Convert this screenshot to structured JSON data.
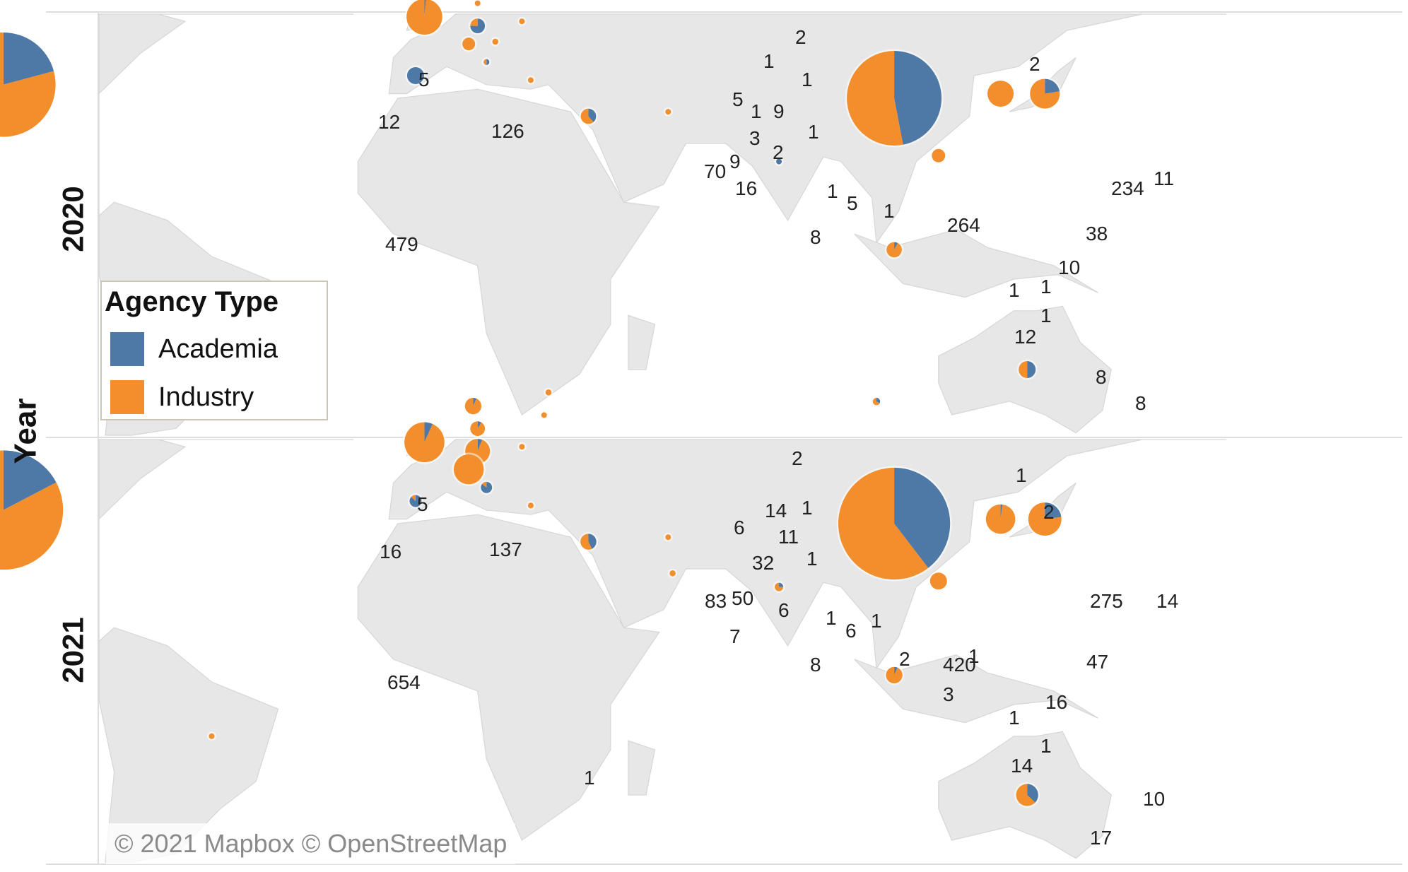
{
  "axis": {
    "row_title": "Year"
  },
  "legend": {
    "title": "Agency Type",
    "items": [
      {
        "label": "Academia",
        "color": "#4e79a7"
      },
      {
        "label": "Industry",
        "color": "#f28e2b"
      }
    ]
  },
  "attribution": "© 2021 Mapbox © OpenStreetMap",
  "panels": [
    {
      "year": "2020",
      "markers": [
        {
          "location": "United States",
          "lon": -97,
          "lat": 38,
          "academia": 126,
          "industry": 479,
          "labels": [
            "126",
            "479"
          ]
        },
        {
          "location": "Canada",
          "lon": -106,
          "lat": 57,
          "academia": 5,
          "industry": 12,
          "labels": [
            "5",
            "12"
          ]
        },
        {
          "location": "United Kingdom",
          "lon": -2,
          "lat": 53,
          "academia": 1,
          "industry": 70,
          "labels": [
            "70"
          ]
        },
        {
          "location": "Norway",
          "lon": 9,
          "lat": 61,
          "academia": 0,
          "industry": 5,
          "labels": [
            "5"
          ]
        },
        {
          "location": "Sweden",
          "lon": 15,
          "lat": 62,
          "academia": 0,
          "industry": 1,
          "labels": [
            "1"
          ]
        },
        {
          "location": "Finland",
          "lon": 26,
          "lat": 64,
          "academia": 0,
          "industry": 2,
          "labels": [
            "2"
          ]
        },
        {
          "location": "Estonia",
          "lon": 25,
          "lat": 59,
          "academia": 0,
          "industry": 1,
          "labels": [
            "1"
          ]
        },
        {
          "location": "Denmark",
          "lon": 10,
          "lat": 56,
          "academia": 0,
          "industry": 1,
          "labels": [
            "1"
          ]
        },
        {
          "location": "Germany",
          "lon": 10,
          "lat": 51,
          "academia": 9,
          "industry": 3,
          "labels": [
            "9",
            "3"
          ]
        },
        {
          "location": "Poland",
          "lon": 20,
          "lat": 52,
          "academia": 0,
          "industry": 1,
          "labels": [
            "1"
          ]
        },
        {
          "location": "Switzerland",
          "lon": 8,
          "lat": 47,
          "academia": 0,
          "industry": 9,
          "labels": [
            "9"
          ]
        },
        {
          "location": "Austria",
          "lon": 14,
          "lat": 47.5,
          "academia": 0,
          "industry": 2,
          "labels": [
            "2"
          ]
        },
        {
          "location": "Italy",
          "lon": 12,
          "lat": 43,
          "academia": 1,
          "industry": 1,
          "labels": []
        },
        {
          "location": "Spain",
          "lon": -4,
          "lat": 40,
          "academia": 16,
          "industry": 0,
          "labels": [
            "16"
          ]
        },
        {
          "location": "Greece",
          "lon": 22,
          "lat": 39,
          "academia": 0,
          "industry": 1,
          "labels": [
            "1"
          ]
        },
        {
          "location": "Israel",
          "lon": 35,
          "lat": 31,
          "academia": 5,
          "industry": 8,
          "labels": [
            "5",
            "8"
          ]
        },
        {
          "location": "Iran",
          "lon": 53,
          "lat": 32,
          "academia": 0,
          "industry": 1,
          "labels": [
            "1"
          ]
        },
        {
          "location": "Russia",
          "lon": 100,
          "lat": 62,
          "academia": 0,
          "industry": 2,
          "labels": [
            "2"
          ]
        },
        {
          "location": "China",
          "lon": 104,
          "lat": 35,
          "academia": 234,
          "industry": 264,
          "labels": [
            "234",
            "264"
          ]
        },
        {
          "location": "India",
          "lon": 78,
          "lat": 21,
          "academia": 1,
          "industry": 0,
          "labels": []
        },
        {
          "location": "South Korea",
          "lon": 128,
          "lat": 36,
          "academia": 0,
          "industry": 38,
          "labels": []
        },
        {
          "location": "Japan",
          "lon": 138,
          "lat": 36,
          "academia": 11,
          "industry": 38,
          "labels": [
            "11",
            "38"
          ]
        },
        {
          "location": "Hong Kong",
          "lon": 114,
          "lat": 22.3,
          "academia": 0,
          "industry": 10,
          "labels": [
            "10"
          ]
        },
        {
          "location": "Singapore",
          "lon": 104,
          "lat": 1.5,
          "academia": 1,
          "industry": 12,
          "labels": [
            "1",
            "1",
            "1",
            "12"
          ]
        },
        {
          "location": "Australia",
          "lon": 134,
          "lat": -25,
          "academia": 8,
          "industry": 8,
          "labels": [
            "8",
            "8"
          ]
        }
      ]
    },
    {
      "year": "2021",
      "markers": [
        {
          "location": "United States",
          "lon": -97,
          "lat": 38,
          "academia": 137,
          "industry": 654,
          "labels": [
            "137",
            "654"
          ]
        },
        {
          "location": "Canada",
          "lon": -106,
          "lat": 57,
          "academia": 5,
          "industry": 16,
          "labels": [
            "5",
            "16"
          ]
        },
        {
          "location": "United Kingdom",
          "lon": -2,
          "lat": 53,
          "academia": 6,
          "industry": 83,
          "labels": [
            "6",
            "83"
          ]
        },
        {
          "location": "Norway",
          "lon": 9,
          "lat": 61,
          "academia": 1,
          "industry": 14,
          "labels": [
            "14"
          ]
        },
        {
          "location": "Finland",
          "lon": 26,
          "lat": 64,
          "academia": 0,
          "industry": 2,
          "labels": [
            "2"
          ]
        },
        {
          "location": "Estonia",
          "lon": 25,
          "lat": 59,
          "academia": 0,
          "industry": 1,
          "labels": [
            "1"
          ]
        },
        {
          "location": "Denmark",
          "lon": 10,
          "lat": 56,
          "academia": 1,
          "industry": 11,
          "labels": [
            "11"
          ]
        },
        {
          "location": "Germany",
          "lon": 10,
          "lat": 51,
          "academia": 2,
          "industry": 32,
          "labels": [
            "32"
          ]
        },
        {
          "location": "Poland",
          "lon": 20,
          "lat": 52,
          "academia": 0,
          "industry": 1,
          "labels": [
            "1"
          ]
        },
        {
          "location": "Switzerland",
          "lon": 8,
          "lat": 47,
          "academia": 0,
          "industry": 50,
          "labels": [
            "50"
          ]
        },
        {
          "location": "Italy",
          "lon": 12,
          "lat": 43,
          "academia": 6,
          "industry": 1,
          "labels": [
            "6"
          ]
        },
        {
          "location": "Spain",
          "lon": -4,
          "lat": 40,
          "academia": 7,
          "industry": 1,
          "labels": [
            "7"
          ]
        },
        {
          "location": "Greece",
          "lon": 22,
          "lat": 39,
          "academia": 0,
          "industry": 1,
          "labels": [
            "1"
          ]
        },
        {
          "location": "Israel",
          "lon": 35,
          "lat": 31,
          "academia": 6,
          "industry": 8,
          "labels": [
            "6",
            "8"
          ]
        },
        {
          "location": "Iran",
          "lon": 53,
          "lat": 32,
          "academia": 0,
          "industry": 1,
          "labels": [
            "1"
          ]
        },
        {
          "location": "UAE",
          "lon": 54,
          "lat": 24,
          "academia": 0,
          "industry": 2,
          "labels": [
            "2"
          ]
        },
        {
          "location": "Russia",
          "lon": 100,
          "lat": 62,
          "academia": 1,
          "industry": 2,
          "labels": [
            "1",
            "2"
          ]
        },
        {
          "location": "China",
          "lon": 104,
          "lat": 35,
          "academia": 275,
          "industry": 420,
          "labels": [
            "275",
            "420"
          ]
        },
        {
          "location": "India",
          "lon": 78,
          "lat": 21,
          "academia": 1,
          "industry": 3,
          "labels": [
            "1",
            "3"
          ]
        },
        {
          "location": "Hong Kong",
          "lon": 114,
          "lat": 22.3,
          "academia": 0,
          "industry": 16,
          "labels": [
            "16"
          ]
        },
        {
          "location": "South Korea",
          "lon": 128,
          "lat": 36,
          "academia": 1,
          "industry": 47,
          "labels": [
            "47"
          ]
        },
        {
          "location": "Japan",
          "lon": 138,
          "lat": 36,
          "academia": 14,
          "industry": 47,
          "labels": [
            "14"
          ]
        },
        {
          "location": "Singapore",
          "lon": 104,
          "lat": 1.5,
          "academia": 1,
          "industry": 14,
          "labels": [
            "1",
            "1",
            "14"
          ]
        },
        {
          "location": "Australia",
          "lon": 134,
          "lat": -25,
          "academia": 10,
          "industry": 17,
          "labels": [
            "10",
            "17"
          ]
        },
        {
          "location": "Brazil",
          "lon": -50,
          "lat": -12,
          "academia": 0,
          "industry": 1,
          "labels": [
            "1"
          ]
        }
      ]
    }
  ]
}
